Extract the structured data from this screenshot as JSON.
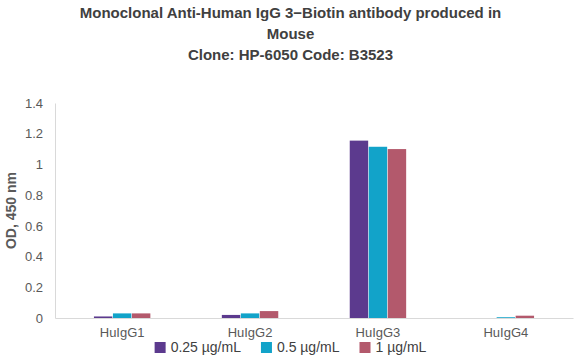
{
  "chart_data": {
    "type": "bar",
    "title": "Monoclonal Anti-Human IgG 3−Biotin antibody produced in Mouse",
    "subtitle": "Clone: HP-6050  Code: B3523",
    "y_label": "OD, 450 nm",
    "categories": [
      "HuIgG1",
      "HuIgG2",
      "HuIgG3",
      "HuIgG4"
    ],
    "series": [
      {
        "name": "0.25 µg/mL",
        "color": "#5c3a8e",
        "values": [
          0.01,
          0.02,
          1.155,
          0
        ]
      },
      {
        "name": "0.5 µg/mL",
        "color": "#12a3c9",
        "values": [
          0.03,
          0.03,
          1.115,
          0.005
        ]
      },
      {
        "name": "1 µg/mL",
        "color": "#b3596c",
        "values": [
          0.03,
          0.045,
          1.1,
          0.015
        ]
      }
    ],
    "ylim": [
      0,
      1.4
    ],
    "yticks": [
      0,
      0.2,
      0.4,
      0.6,
      0.8,
      1,
      1.2,
      1.4
    ],
    "grid": false,
    "legend": "bottom"
  }
}
